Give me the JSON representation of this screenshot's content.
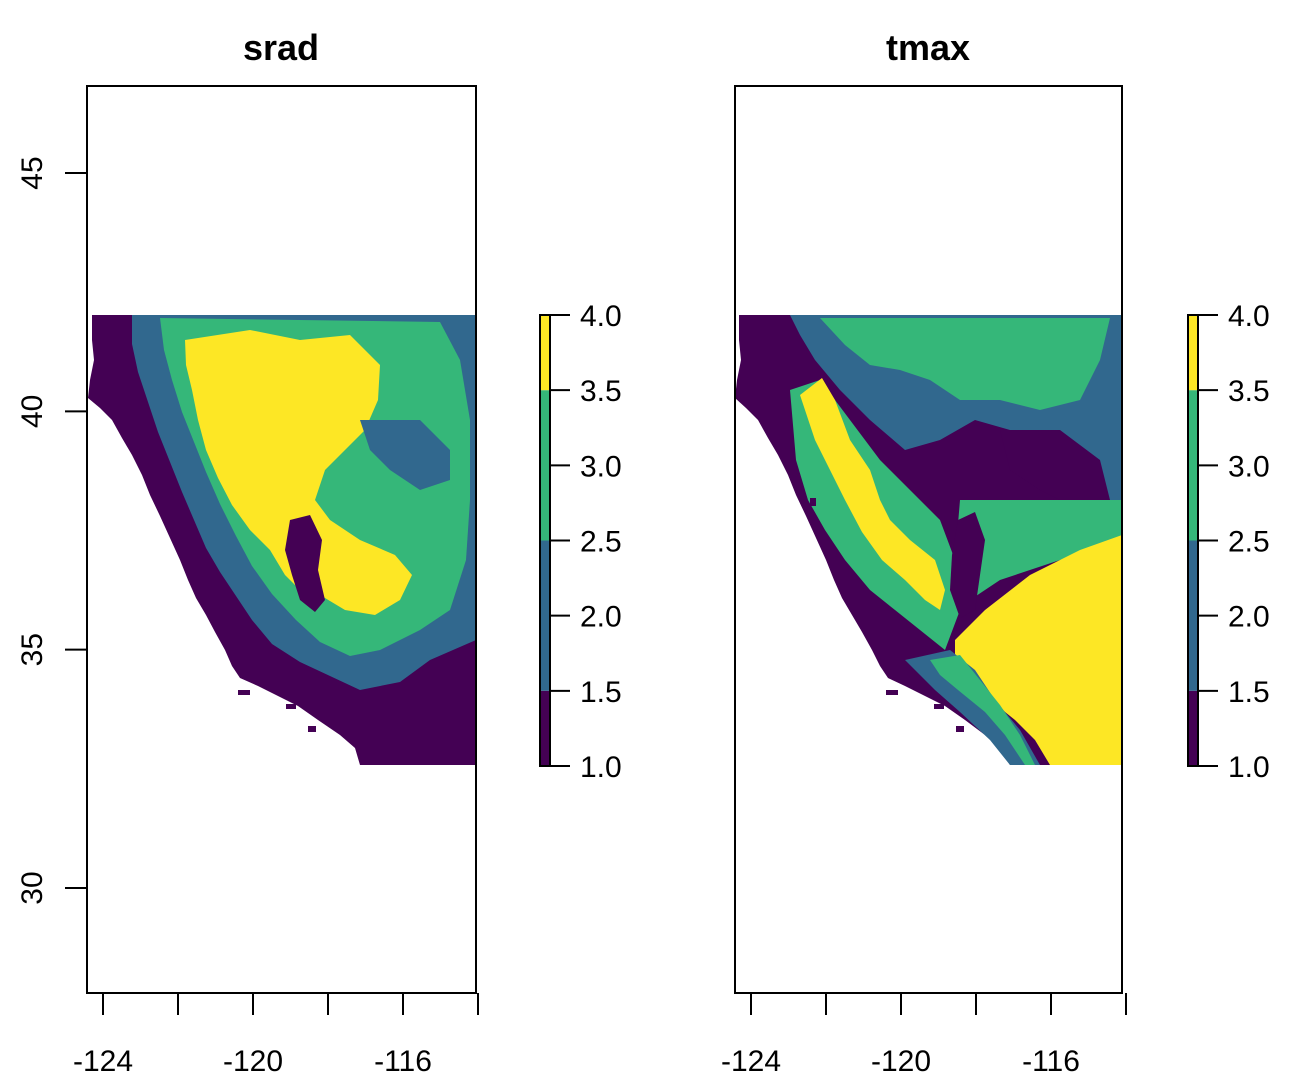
{
  "panels": [
    {
      "title": "srad",
      "show_y_axis": true,
      "x_ticks": [
        -124,
        -122,
        -120,
        -118,
        -116,
        -114
      ],
      "x_tick_labels": [
        "-124",
        "-120",
        "-116"
      ],
      "y_ticks": [
        45,
        40,
        35,
        30
      ],
      "y_tick_labels": [
        "45",
        "40",
        "35",
        "30"
      ],
      "legend": {
        "ticks": [
          "4.0",
          "3.5",
          "3.0",
          "2.5",
          "2.0",
          "1.5",
          "1.0"
        ]
      },
      "mostly": "low-coast-high-inland"
    },
    {
      "title": "tmax",
      "show_y_axis": false,
      "x_ticks": [
        -124,
        -122,
        -120,
        -118,
        -116,
        -114
      ],
      "x_tick_labels": [
        "-124",
        "-120",
        "-116"
      ],
      "y_ticks": [],
      "y_tick_labels": [],
      "legend": {
        "ticks": [
          "4.0",
          "3.5",
          "3.0",
          "2.5",
          "2.0",
          "1.5",
          "1.0"
        ]
      },
      "mostly": "low-coast-high-southeast"
    }
  ],
  "extent": {
    "xlim": [
      -124.4,
      -114.1
    ],
    "ylim": [
      27.8,
      46.8
    ],
    "raster_xlim": [
      -124.4,
      -114.1
    ],
    "raster_ylim": [
      32.5,
      42.0
    ]
  },
  "classes": [
    {
      "range": [
        1.0,
        1.5
      ],
      "color": "#440154"
    },
    {
      "range": [
        1.5,
        2.5
      ],
      "color": "#31688E"
    },
    {
      "range": [
        2.5,
        3.5
      ],
      "color": "#35B779"
    },
    {
      "range": [
        3.5,
        4.0
      ],
      "color": "#FDE725"
    }
  ],
  "legend_range": [
    1.0,
    4.0
  ]
}
